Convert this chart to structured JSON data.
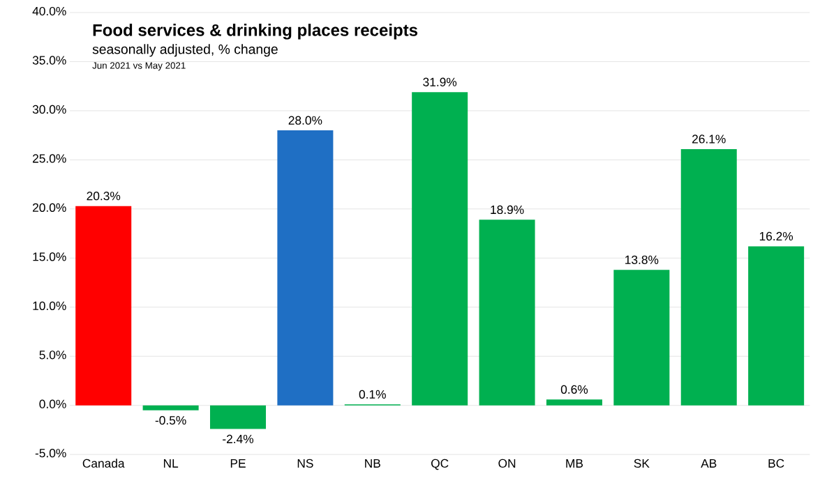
{
  "chart_data": {
    "type": "bar",
    "title": "Food services & drinking places receipts",
    "subtitle": "seasonally adjusted,  % change",
    "annotations": [
      "Jun 2021 vs May 2021"
    ],
    "categories": [
      "Canada",
      "NL",
      "PE",
      "NS",
      "NB",
      "QC",
      "ON",
      "MB",
      "SK",
      "AB",
      "BC"
    ],
    "values": [
      20.3,
      -0.5,
      -2.4,
      28.0,
      0.1,
      31.9,
      18.9,
      0.6,
      13.8,
      26.1,
      16.2
    ],
    "value_labels": [
      "20.3%",
      "-0.5%",
      "-2.4%",
      "28.0%",
      "0.1%",
      "31.9%",
      "18.9%",
      "0.6%",
      "13.8%",
      "26.1%",
      "16.2%"
    ],
    "colors": [
      "#ff0000",
      "#00b050",
      "#00b050",
      "#1f6fc4",
      "#00b050",
      "#00b050",
      "#00b050",
      "#00b050",
      "#00b050",
      "#00b050",
      "#00b050"
    ],
    "ylim": [
      -5,
      40
    ],
    "yticks": [
      {
        "value": -5,
        "label": "-5.0%"
      },
      {
        "value": 0,
        "label": "0.0%"
      },
      {
        "value": 5,
        "label": "5.0%"
      },
      {
        "value": 10,
        "label": "10.0%"
      },
      {
        "value": 15,
        "label": "15.0%"
      },
      {
        "value": 20,
        "label": "20.0%"
      },
      {
        "value": 25,
        "label": "25.0%"
      },
      {
        "value": 30,
        "label": "30.0%"
      },
      {
        "value": 35,
        "label": "35.0%"
      },
      {
        "value": 40,
        "label": "40.0%"
      }
    ],
    "grid": "y"
  }
}
